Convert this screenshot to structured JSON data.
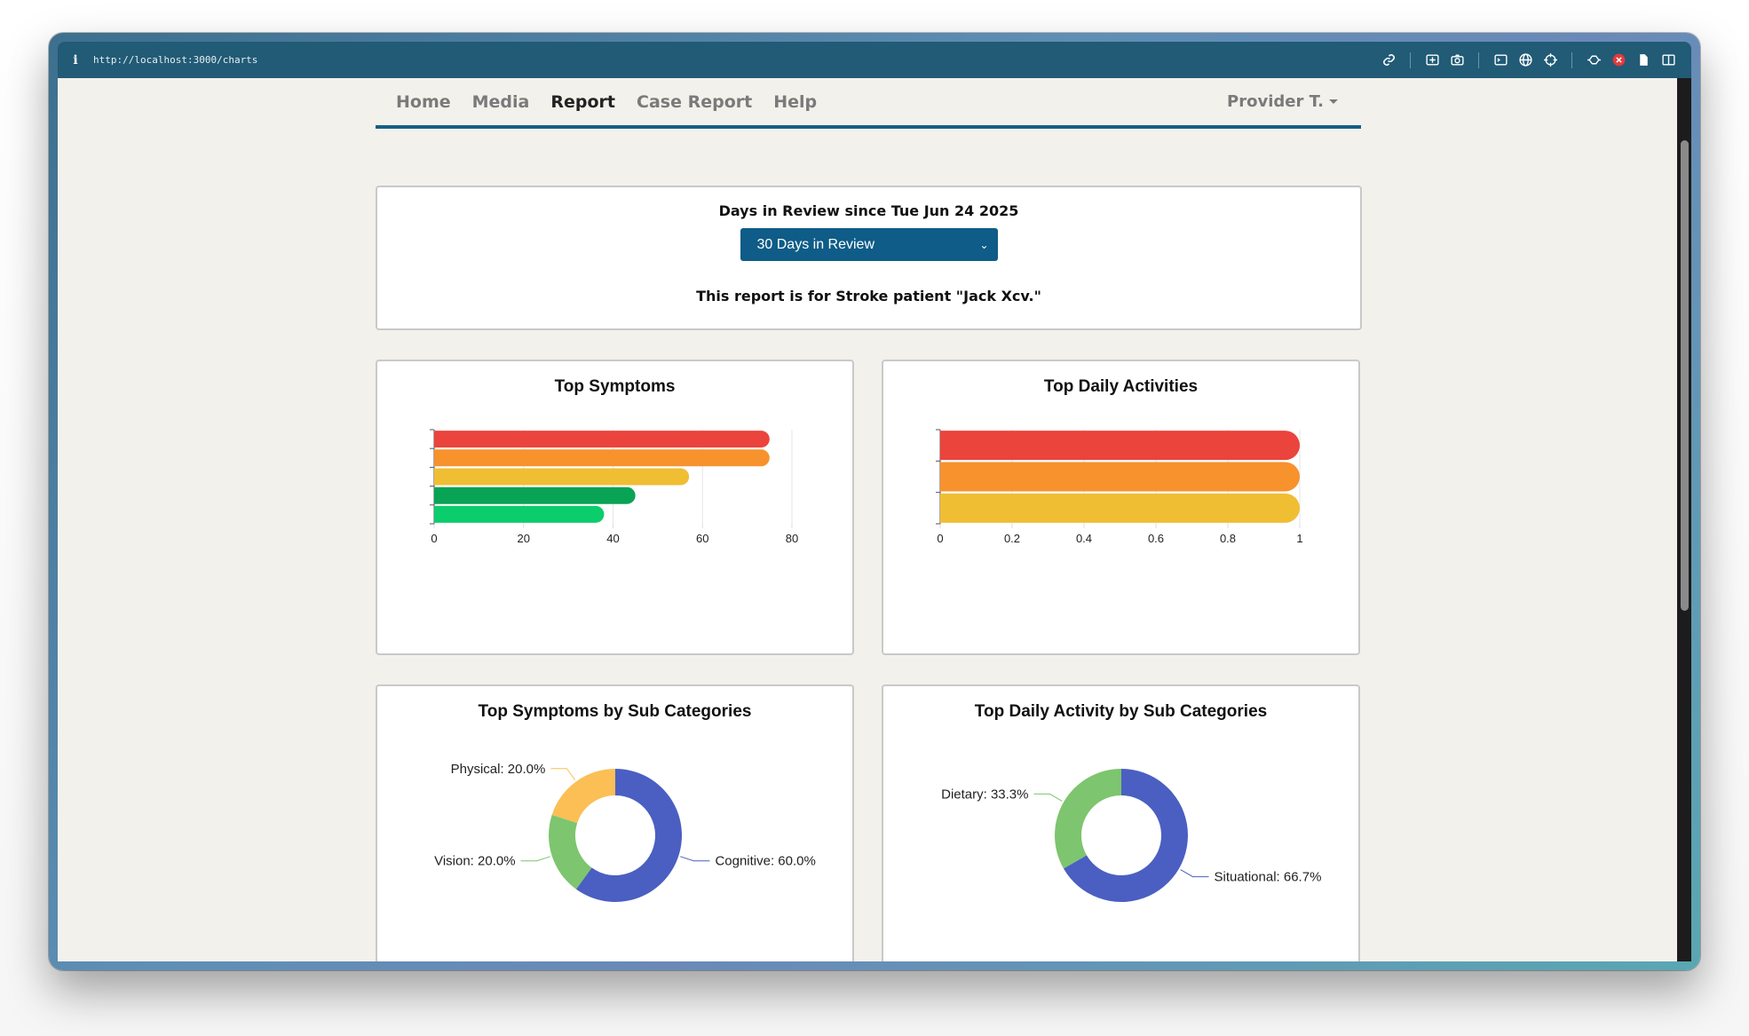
{
  "browser": {
    "url": "http://localhost:3000/charts",
    "info_glyph": "i",
    "icons": [
      "link-icon",
      "screenshot-icon",
      "camera-icon",
      "terminal-icon",
      "globe-icon",
      "crosshair-icon",
      "extensions-icon",
      "record-icon",
      "page-icon",
      "sidebar-icon"
    ]
  },
  "nav": {
    "items": [
      {
        "label": "Home",
        "active": false
      },
      {
        "label": "Media",
        "active": false
      },
      {
        "label": "Report",
        "active": true
      },
      {
        "label": "Case Report",
        "active": false
      },
      {
        "label": "Help",
        "active": false
      }
    ],
    "user": "Provider T."
  },
  "review": {
    "heading": "Days in Review since Tue Jun 24 2025",
    "select_value": "30 Days in Review",
    "note": "This report is for Stroke patient \"Jack Xcv.\""
  },
  "colors": {
    "red": "#ea443d",
    "orange": "#f7922d",
    "yellow": "#f0be33",
    "green": "#08a354",
    "light_green": "#0ccd6c",
    "blue": "#4a5fc1",
    "pie_green": "#7dc56e",
    "pie_yellow": "#fbbf56"
  },
  "chart_data": [
    {
      "type": "bar",
      "orientation": "horizontal",
      "title": "Top Symptoms",
      "categories": [
        "",
        "",
        "",
        "",
        ""
      ],
      "values": [
        75,
        75,
        57,
        45,
        38
      ],
      "xlim": [
        0,
        80
      ],
      "xticks": [
        "0",
        "20",
        "40",
        "60",
        "80"
      ],
      "bar_colors": [
        "#ea443d",
        "#f7922d",
        "#f0be33",
        "#08a354",
        "#0ccd6c"
      ],
      "grid": "vertical"
    },
    {
      "type": "bar",
      "orientation": "horizontal",
      "title": "Top Daily Activities",
      "categories": [
        "",
        "",
        ""
      ],
      "values": [
        1,
        1,
        1
      ],
      "xlim": [
        0,
        1
      ],
      "xticks": [
        "0",
        "0.2",
        "0.4",
        "0.6",
        "0.8",
        "1"
      ],
      "bar_colors": [
        "#ea443d",
        "#f7922d",
        "#f0be33"
      ],
      "grid": "vertical"
    },
    {
      "type": "pie",
      "variant": "donut",
      "title": "Top Symptoms by Sub Categories",
      "slices": [
        {
          "label": "Cognitive: 60.0%",
          "value": 60,
          "color": "#4a5fc1"
        },
        {
          "label": "Vision: 20.0%",
          "value": 20,
          "color": "#7dc56e"
        },
        {
          "label": "Physical: 20.0%",
          "value": 20,
          "color": "#fbbf56"
        }
      ]
    },
    {
      "type": "pie",
      "variant": "donut",
      "title": "Top Daily Activity by Sub Categories",
      "slices": [
        {
          "label": "Situational: 66.7%",
          "value": 66.7,
          "color": "#4a5fc1"
        },
        {
          "label": "Dietary: 33.3%",
          "value": 33.3,
          "color": "#7dc56e"
        }
      ]
    }
  ]
}
